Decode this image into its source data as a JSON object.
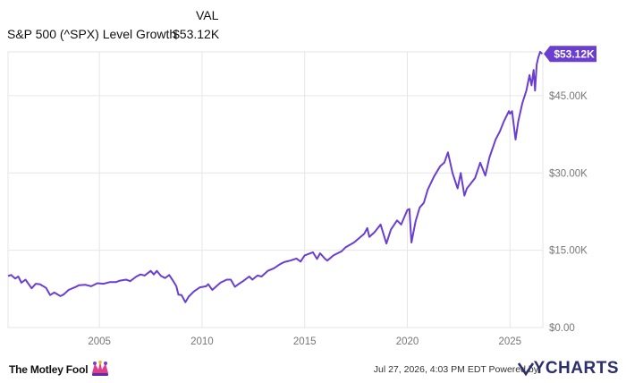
{
  "legend": {
    "column_header": "VAL",
    "series_name": "S&P 500 (^SPX) Level Growth",
    "series_value": "$53.12K"
  },
  "colors": {
    "line": "#6a3fd0",
    "grid": "#e6e6e6",
    "axis_text": "#777777",
    "badge_bg": "#6a3fd0",
    "badge_text": "#ffffff"
  },
  "chart_data": {
    "type": "line",
    "title": "",
    "xlabel": "",
    "ylabel": "",
    "x_ticks": [
      2005,
      2010,
      2015,
      2020,
      2025
    ],
    "y_ticks": [
      0,
      15000,
      30000,
      45000
    ],
    "y_tick_labels": [
      "$0.00",
      "$15.00K",
      "$30.00K",
      "$45.00K"
    ],
    "xlim": [
      2000.55,
      2026.6
    ],
    "ylim": [
      0,
      53500
    ],
    "grid": true,
    "last_value_label": "$53.12K",
    "series": [
      {
        "name": "S&P 500 (^SPX) Level Growth",
        "points": [
          [
            2000.55,
            10000
          ],
          [
            2000.7,
            10200
          ],
          [
            2000.9,
            9500
          ],
          [
            2001.05,
            9900
          ],
          [
            2001.2,
            8700
          ],
          [
            2001.4,
            9300
          ],
          [
            2001.7,
            7600
          ],
          [
            2001.9,
            8500
          ],
          [
            2002.1,
            8400
          ],
          [
            2002.4,
            7700
          ],
          [
            2002.6,
            6300
          ],
          [
            2002.8,
            6800
          ],
          [
            2003.1,
            6100
          ],
          [
            2003.25,
            6400
          ],
          [
            2003.5,
            7300
          ],
          [
            2003.8,
            7800
          ],
          [
            2004.0,
            8200
          ],
          [
            2004.3,
            8300
          ],
          [
            2004.6,
            8000
          ],
          [
            2004.9,
            8600
          ],
          [
            2005.2,
            8500
          ],
          [
            2005.5,
            8800
          ],
          [
            2005.8,
            8800
          ],
          [
            2006.0,
            9100
          ],
          [
            2006.3,
            9300
          ],
          [
            2006.5,
            9000
          ],
          [
            2006.8,
            9900
          ],
          [
            2007.0,
            10300
          ],
          [
            2007.2,
            10100
          ],
          [
            2007.5,
            11000
          ],
          [
            2007.65,
            10300
          ],
          [
            2007.8,
            11000
          ],
          [
            2008.0,
            10000
          ],
          [
            2008.2,
            9600
          ],
          [
            2008.4,
            10200
          ],
          [
            2008.6,
            9000
          ],
          [
            2008.75,
            8000
          ],
          [
            2008.85,
            6400
          ],
          [
            2009.0,
            6300
          ],
          [
            2009.19,
            4900
          ],
          [
            2009.35,
            6000
          ],
          [
            2009.6,
            7000
          ],
          [
            2009.9,
            7800
          ],
          [
            2010.2,
            8000
          ],
          [
            2010.3,
            8400
          ],
          [
            2010.5,
            7300
          ],
          [
            2010.7,
            8000
          ],
          [
            2010.9,
            8700
          ],
          [
            2011.2,
            9300
          ],
          [
            2011.4,
            9300
          ],
          [
            2011.6,
            7900
          ],
          [
            2011.8,
            8500
          ],
          [
            2012.0,
            9000
          ],
          [
            2012.3,
            9900
          ],
          [
            2012.45,
            9300
          ],
          [
            2012.7,
            10100
          ],
          [
            2012.9,
            9900
          ],
          [
            2013.2,
            11000
          ],
          [
            2013.5,
            11500
          ],
          [
            2013.8,
            12300
          ],
          [
            2014.0,
            12700
          ],
          [
            2014.3,
            13000
          ],
          [
            2014.6,
            13400
          ],
          [
            2014.8,
            12800
          ],
          [
            2015.0,
            14000
          ],
          [
            2015.4,
            14600
          ],
          [
            2015.6,
            13300
          ],
          [
            2015.75,
            14400
          ],
          [
            2016.0,
            13300
          ],
          [
            2016.1,
            13000
          ],
          [
            2016.4,
            14000
          ],
          [
            2016.8,
            14800
          ],
          [
            2017.0,
            15600
          ],
          [
            2017.4,
            16500
          ],
          [
            2017.9,
            18200
          ],
          [
            2018.05,
            19300
          ],
          [
            2018.15,
            17600
          ],
          [
            2018.4,
            18500
          ],
          [
            2018.7,
            20000
          ],
          [
            2018.85,
            18000
          ],
          [
            2018.98,
            16300
          ],
          [
            2019.2,
            19000
          ],
          [
            2019.5,
            20800
          ],
          [
            2019.7,
            20000
          ],
          [
            2020.0,
            22800
          ],
          [
            2020.1,
            23000
          ],
          [
            2020.2,
            16500
          ],
          [
            2020.4,
            20600
          ],
          [
            2020.6,
            23300
          ],
          [
            2020.8,
            24200
          ],
          [
            2021.0,
            26800
          ],
          [
            2021.3,
            29300
          ],
          [
            2021.6,
            31300
          ],
          [
            2021.8,
            32000
          ],
          [
            2021.98,
            34000
          ],
          [
            2022.2,
            30000
          ],
          [
            2022.45,
            27000
          ],
          [
            2022.6,
            30000
          ],
          [
            2022.78,
            25600
          ],
          [
            2022.9,
            27000
          ],
          [
            2023.1,
            28000
          ],
          [
            2023.3,
            29000
          ],
          [
            2023.55,
            32000
          ],
          [
            2023.8,
            29500
          ],
          [
            2024.0,
            33000
          ],
          [
            2024.3,
            36500
          ],
          [
            2024.5,
            38000
          ],
          [
            2024.7,
            40000
          ],
          [
            2024.95,
            42000
          ],
          [
            2025.0,
            41500
          ],
          [
            2025.1,
            42000
          ],
          [
            2025.27,
            36500
          ],
          [
            2025.4,
            40000
          ],
          [
            2025.6,
            43500
          ],
          [
            2025.8,
            46000
          ],
          [
            2025.95,
            49000
          ],
          [
            2026.05,
            47000
          ],
          [
            2026.15,
            50000
          ],
          [
            2026.22,
            46000
          ],
          [
            2026.3,
            51000
          ],
          [
            2026.38,
            52400
          ],
          [
            2026.47,
            53500
          ],
          [
            2026.57,
            53120
          ]
        ]
      }
    ]
  },
  "footer": {
    "brand": "The Motley Fool",
    "timestamp": "Jul 27, 2026, 4:03 PM EDT Powered by",
    "provider_logo_text": "YCHARTS"
  }
}
